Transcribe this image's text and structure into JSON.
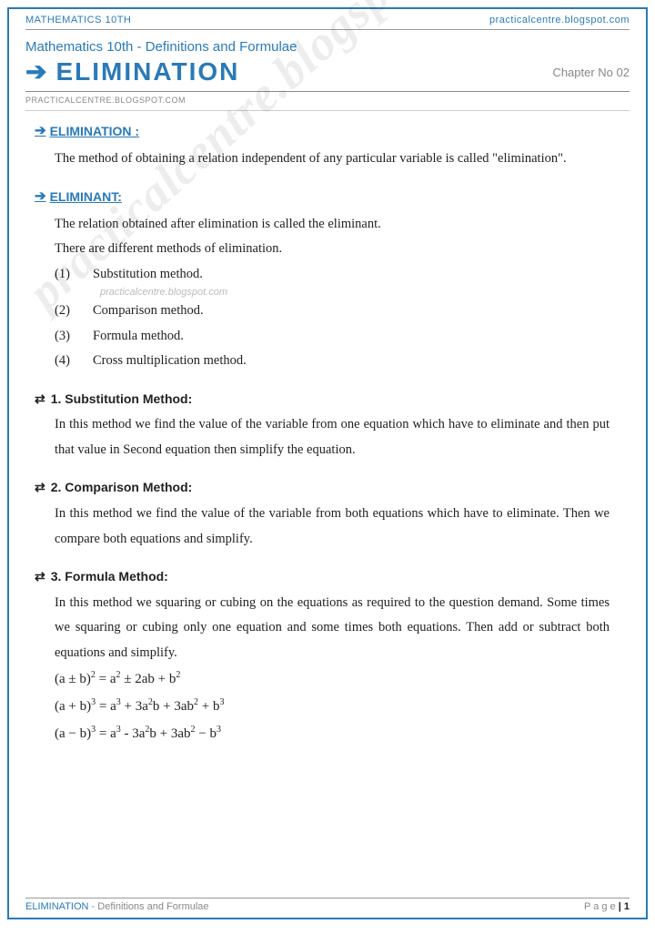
{
  "top": {
    "left": "MATHEMATICS 10TH",
    "right": "practicalcentre.blogspot.com"
  },
  "subtitle": "Mathematics 10th - Definitions and Formulae",
  "title": "ELIMINATION",
  "chapter": "Chapter No 02",
  "microurl": "PRACTICALCENTRE.BLOGSPOT.COM",
  "s1": {
    "h": "ELIMINATION :",
    "p": "The method of obtaining a relation independent of any particular variable is called \"elimination\"."
  },
  "s2": {
    "h": "ELIMINANT:",
    "p1": "The relation obtained after elimination is called the eliminant.",
    "p2": "There are different methods of elimination.",
    "items": [
      "Substitution method.",
      "Comparison method.",
      "Formula method.",
      "Cross multiplication method."
    ]
  },
  "wm_small": "practicalcentre.blogspot.com",
  "m1": {
    "h": "1. Substitution Method:",
    "p": "In this method we find the value of the variable from one equation which have to eliminate and then put that value in Second equation then simplify the equation."
  },
  "m2": {
    "h": "2. Comparison Method:",
    "p": "In this method we find the value of the variable from both equations which have to eliminate. Then we compare both equations and simplify."
  },
  "m3": {
    "h": "3. Formula Method:",
    "p": "In this method we squaring or cubing on the equations as required to the question demand. Some times we squaring or cubing only one equation and some times both equations. Then add or subtract both equations and simplify."
  },
  "foot": {
    "left1": "ELIMINATION",
    "left2": " - Definitions and Formulae",
    "right1": "P a g e ",
    "right2": "| 1"
  },
  "watermark": "practicalcentre.blogspot.com"
}
